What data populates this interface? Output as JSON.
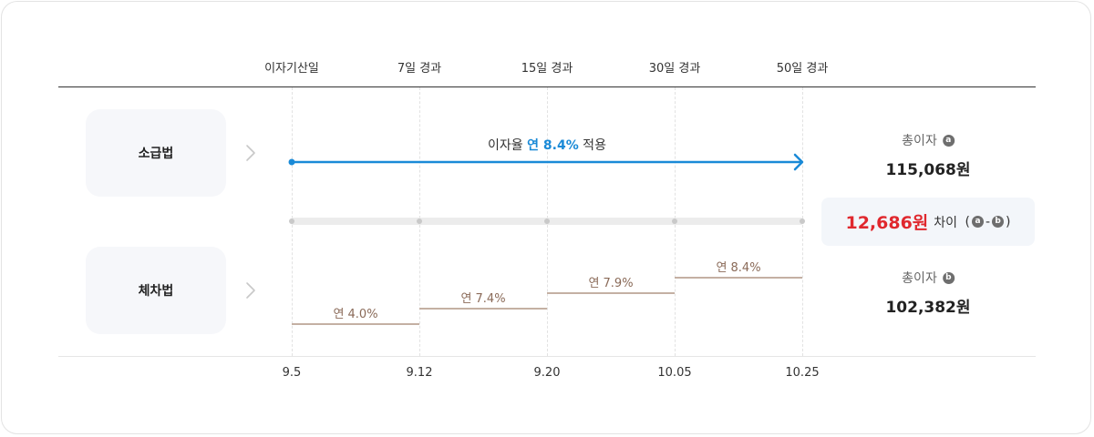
{
  "timeline_headers": [
    "이자기산일",
    "7일 경과",
    "15일 경과",
    "30일 경과",
    "50일 경과"
  ],
  "dates": [
    "9.5",
    "9.12",
    "9.20",
    "10.05",
    "10.25"
  ],
  "methods": {
    "lump_sum": {
      "label": "소급법",
      "rate_text_prefix": "이자율 ",
      "rate_text_highlight": "연 8.4%",
      "rate_text_suffix": " 적용",
      "total_label": "총이자",
      "total_badge": "a",
      "total_value": "115,068원"
    },
    "tiered": {
      "label": "체차법",
      "total_label": "총이자",
      "total_badge": "b",
      "total_value": "102,382원",
      "steps": [
        {
          "label": "연 4.0%",
          "rate": 4.0
        },
        {
          "label": "연 7.4%",
          "rate": 7.4
        },
        {
          "label": "연 7.9%",
          "rate": 7.9
        },
        {
          "label": "연 8.4%",
          "rate": 8.4
        }
      ]
    }
  },
  "difference": {
    "amount": "12,686원",
    "text": "차이",
    "open_paren": "(",
    "badge_a": "a",
    "dash": "-",
    "badge_b": "b",
    "close_paren": ")"
  },
  "colors": {
    "accent_blue": "#1a8ad7",
    "difference_red": "#e0282e",
    "step_line": "#c4b0a3",
    "step_text": "#8a6a58"
  },
  "icons": {
    "chevron": "chevron-right-icon",
    "arrow": "arrow-right-icon"
  }
}
